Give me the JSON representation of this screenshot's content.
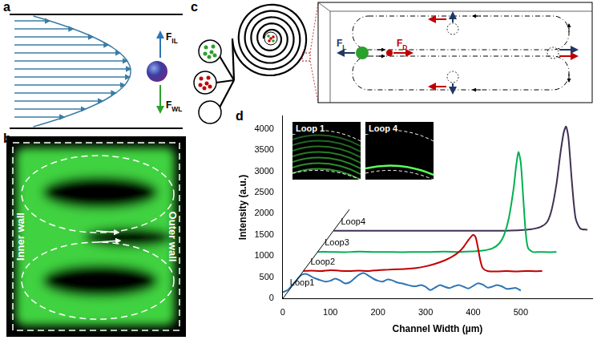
{
  "panels": {
    "a": {
      "label": "a",
      "forces": [
        {
          "base": "F",
          "sub": "IL"
        },
        {
          "base": "F",
          "sub": "WL"
        }
      ]
    },
    "b": {
      "label": "b",
      "inner_wall": "Inner wall",
      "outer_wall": "Outer wall"
    },
    "c": {
      "label": "c",
      "forces": [
        {
          "base": "F",
          "sub": "L"
        },
        {
          "base": "F",
          "sub": "D"
        }
      ]
    },
    "d": {
      "label": "d",
      "insets": [
        "Loop 1",
        "Loop 4"
      ]
    }
  },
  "chart_data": {
    "type": "line",
    "x_label": "Channel Width (µm)",
    "y_label": "Intensity (a.u.)",
    "xlim": [
      0,
      650
    ],
    "xticks": [
      0,
      100,
      200,
      300,
      400,
      500
    ],
    "ylim": [
      0,
      4300
    ],
    "yticks": [
      0,
      500,
      1000,
      1500,
      2000,
      2500,
      3000,
      3500,
      4000
    ],
    "grid": false,
    "depth_axis": {
      "x": [
        0,
        140
      ],
      "values": [
        0,
        2100
      ],
      "color": "#000000"
    },
    "series": [
      {
        "name": "Loop1",
        "color": "#2e75b6",
        "x": [
          0,
          10,
          20,
          30,
          40,
          50,
          60,
          70,
          80,
          90,
          100,
          110,
          120,
          130,
          140,
          150,
          160,
          170,
          180,
          190,
          200,
          210,
          220,
          230,
          240,
          250,
          260,
          270,
          280,
          290,
          300,
          310,
          320,
          330,
          340,
          350,
          360,
          370,
          380,
          390,
          400,
          410,
          420,
          430,
          440,
          450,
          460,
          470,
          480,
          490,
          500
        ],
        "values": [
          150,
          200,
          320,
          450,
          560,
          580,
          520,
          470,
          430,
          400,
          420,
          470,
          430,
          360,
          380,
          470,
          560,
          600,
          540,
          470,
          420,
          400,
          450,
          430,
          380,
          360,
          330,
          300,
          290,
          320,
          280,
          200,
          260,
          320,
          280,
          250,
          290,
          320,
          280,
          240,
          300,
          360,
          330,
          260,
          280,
          320,
          290,
          230,
          240,
          250,
          190
        ]
      },
      {
        "name": "Loop2",
        "color": "#c00000",
        "x": [
          43,
          60,
          80,
          100,
          120,
          140,
          160,
          180,
          200,
          220,
          240,
          260,
          280,
          300,
          320,
          340,
          355,
          370,
          380,
          390,
          400,
          405,
          410,
          415,
          420,
          430,
          450,
          470,
          490,
          510,
          530,
          545
        ],
        "values": [
          650,
          660,
          650,
          670,
          655,
          650,
          660,
          650,
          670,
          680,
          690,
          700,
          720,
          760,
          820,
          900,
          980,
          1100,
          1220,
          1380,
          1500,
          1450,
          1200,
          900,
          720,
          650,
          640,
          650,
          640,
          650,
          645,
          650
        ]
      },
      {
        "name": "Loop3",
        "color": "#00b050",
        "x": [
          73,
          100,
          130,
          160,
          190,
          220,
          250,
          280,
          310,
          340,
          370,
          400,
          420,
          440,
          455,
          465,
          475,
          485,
          490,
          495,
          500,
          505,
          510,
          515,
          525,
          540,
          560,
          575
        ],
        "values": [
          1100,
          1100,
          1095,
          1105,
          1100,
          1100,
          1095,
          1100,
          1100,
          1105,
          1100,
          1110,
          1130,
          1180,
          1300,
          1500,
          1900,
          2600,
          3100,
          3450,
          3200,
          2400,
          1600,
          1200,
          1100,
          1100,
          1095,
          1100
        ]
      },
      {
        "name": "Loop4",
        "color": "#403152",
        "x": [
          107,
          140,
          170,
          200,
          230,
          260,
          290,
          320,
          350,
          380,
          410,
          440,
          470,
          500,
          520,
          540,
          555,
          565,
          575,
          583,
          590,
          595,
          600,
          607,
          615,
          625,
          640
        ],
        "values": [
          1600,
          1600,
          1600,
          1600,
          1600,
          1600,
          1600,
          1600,
          1600,
          1600,
          1600,
          1600,
          1600,
          1610,
          1630,
          1680,
          1800,
          2100,
          2700,
          3400,
          3900,
          4050,
          3800,
          2800,
          1900,
          1650,
          1620
        ]
      }
    ]
  }
}
